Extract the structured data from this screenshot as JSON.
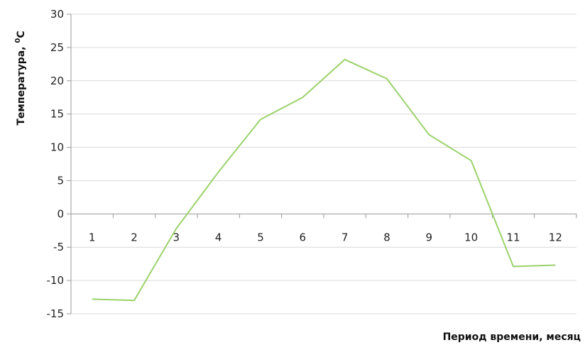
{
  "chart_data": {
    "type": "line",
    "categories": [
      "1",
      "2",
      "3",
      "4",
      "5",
      "6",
      "7",
      "8",
      "9",
      "10",
      "11",
      "12"
    ],
    "series": [
      {
        "values": [
          -12.8,
          -13.0,
          -2.2,
          6.3,
          14.2,
          17.5,
          23.2,
          20.3,
          11.9,
          8.0,
          -7.9,
          -7.7
        ]
      }
    ],
    "xlabel": "Период времени, месяц",
    "ylabel": "Температура, ",
    "ylabel_superscript": "0",
    "ylabel_unit": "C",
    "ylim": [
      -15,
      30
    ],
    "yticks": [
      "30",
      "25",
      "20",
      "15",
      "10",
      "5",
      "0",
      "-5",
      "-10",
      "-15"
    ],
    "grid": true,
    "legend": "none",
    "line_color": "#9bd26b",
    "grid_color": "#d9d9d9"
  }
}
